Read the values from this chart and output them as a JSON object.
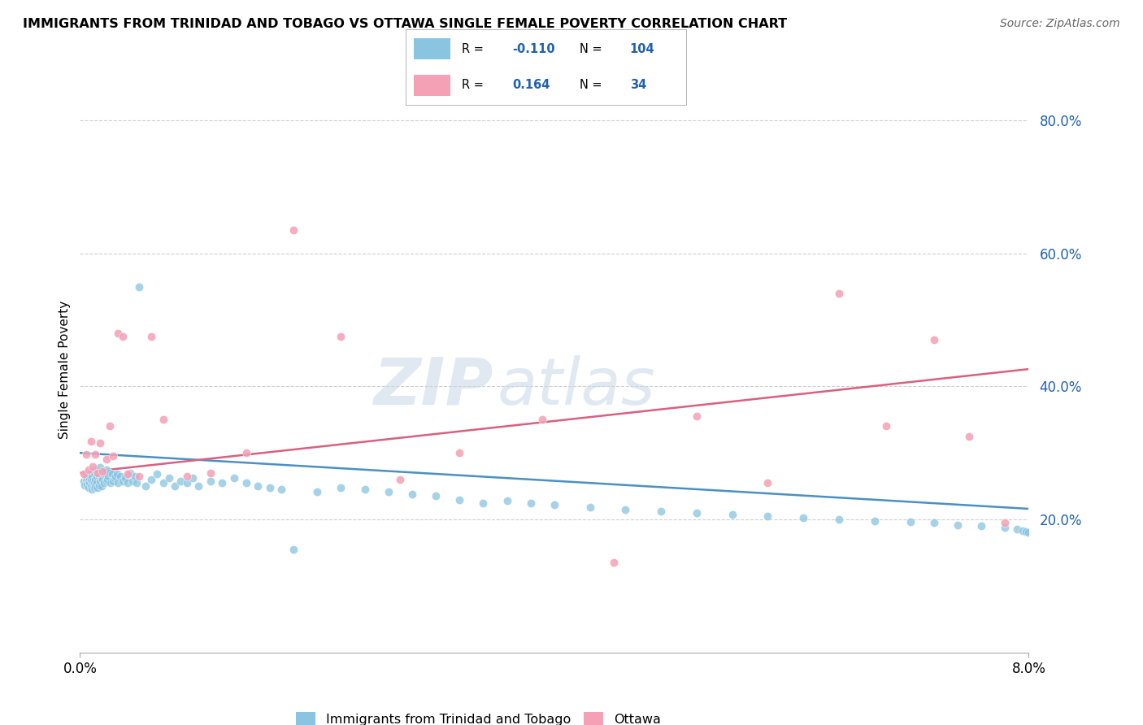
{
  "title": "IMMIGRANTS FROM TRINIDAD AND TOBAGO VS OTTAWA SINGLE FEMALE POVERTY CORRELATION CHART",
  "source": "Source: ZipAtlas.com",
  "ylabel": "Single Female Poverty",
  "xlim": [
    0.0,
    0.08
  ],
  "ylim": [
    0.0,
    0.85
  ],
  "grid_color": "#d0d0d0",
  "background_color": "#ffffff",
  "blue_color": "#89c4e1",
  "pink_color": "#f4a0b5",
  "blue_line_color": "#4a90c4",
  "pink_line_color": "#d96080",
  "legend_R_color": "#2060b0",
  "R_blue_str": "-0.110",
  "N_blue_str": "104",
  "R_pink_str": "0.164",
  "N_pink_str": "34",
  "blue_intercept": 0.3,
  "blue_slope": -1.05,
  "pink_intercept": 0.27,
  "pink_slope": 1.95,
  "blue_points_x": [
    0.0003,
    0.0004,
    0.0005,
    0.0005,
    0.0006,
    0.0006,
    0.0007,
    0.0007,
    0.0008,
    0.0008,
    0.0009,
    0.0009,
    0.001,
    0.001,
    0.0011,
    0.0011,
    0.0012,
    0.0012,
    0.0012,
    0.0013,
    0.0013,
    0.0013,
    0.0014,
    0.0014,
    0.0015,
    0.0015,
    0.0016,
    0.0016,
    0.0017,
    0.0017,
    0.0018,
    0.0018,
    0.0019,
    0.002,
    0.002,
    0.0021,
    0.0022,
    0.0022,
    0.0023,
    0.0024,
    0.0025,
    0.0026,
    0.0027,
    0.0028,
    0.0029,
    0.003,
    0.0031,
    0.0032,
    0.0034,
    0.0036,
    0.0038,
    0.004,
    0.0042,
    0.0044,
    0.0046,
    0.0048,
    0.005,
    0.0055,
    0.006,
    0.0065,
    0.007,
    0.0075,
    0.008,
    0.0085,
    0.009,
    0.0095,
    0.01,
    0.011,
    0.012,
    0.013,
    0.014,
    0.015,
    0.016,
    0.017,
    0.018,
    0.02,
    0.022,
    0.024,
    0.026,
    0.028,
    0.03,
    0.032,
    0.034,
    0.036,
    0.038,
    0.04,
    0.043,
    0.046,
    0.049,
    0.052,
    0.055,
    0.058,
    0.061,
    0.064,
    0.067,
    0.07,
    0.072,
    0.074,
    0.076,
    0.078,
    0.079,
    0.0795,
    0.0798,
    0.08
  ],
  "blue_points_y": [
    0.258,
    0.252,
    0.26,
    0.268,
    0.253,
    0.262,
    0.248,
    0.257,
    0.255,
    0.263,
    0.25,
    0.26,
    0.245,
    0.265,
    0.252,
    0.258,
    0.248,
    0.255,
    0.27,
    0.25,
    0.26,
    0.275,
    0.255,
    0.265,
    0.248,
    0.27,
    0.252,
    0.265,
    0.258,
    0.278,
    0.25,
    0.262,
    0.26,
    0.255,
    0.268,
    0.27,
    0.258,
    0.275,
    0.26,
    0.265,
    0.27,
    0.255,
    0.268,
    0.258,
    0.262,
    0.265,
    0.268,
    0.255,
    0.265,
    0.258,
    0.262,
    0.255,
    0.27,
    0.258,
    0.265,
    0.255,
    0.55,
    0.25,
    0.26,
    0.268,
    0.255,
    0.262,
    0.25,
    0.258,
    0.255,
    0.262,
    0.25,
    0.258,
    0.255,
    0.262,
    0.255,
    0.25,
    0.248,
    0.245,
    0.155,
    0.242,
    0.248,
    0.245,
    0.242,
    0.238,
    0.235,
    0.23,
    0.225,
    0.228,
    0.225,
    0.222,
    0.218,
    0.215,
    0.212,
    0.21,
    0.208,
    0.205,
    0.202,
    0.2,
    0.198,
    0.196,
    0.195,
    0.192,
    0.19,
    0.188,
    0.185,
    0.183,
    0.182,
    0.18
  ],
  "pink_points_x": [
    0.0003,
    0.0005,
    0.0007,
    0.0009,
    0.0011,
    0.0013,
    0.0015,
    0.0017,
    0.0019,
    0.0022,
    0.0025,
    0.0028,
    0.0032,
    0.0036,
    0.004,
    0.005,
    0.006,
    0.007,
    0.009,
    0.011,
    0.014,
    0.018,
    0.022,
    0.027,
    0.032,
    0.039,
    0.045,
    0.052,
    0.058,
    0.064,
    0.068,
    0.072,
    0.075,
    0.078
  ],
  "pink_points_y": [
    0.268,
    0.298,
    0.275,
    0.318,
    0.28,
    0.298,
    0.27,
    0.315,
    0.272,
    0.29,
    0.34,
    0.295,
    0.48,
    0.475,
    0.268,
    0.265,
    0.475,
    0.35,
    0.265,
    0.27,
    0.3,
    0.635,
    0.475,
    0.26,
    0.3,
    0.35,
    0.135,
    0.355,
    0.255,
    0.54,
    0.34,
    0.47,
    0.325,
    0.195
  ]
}
